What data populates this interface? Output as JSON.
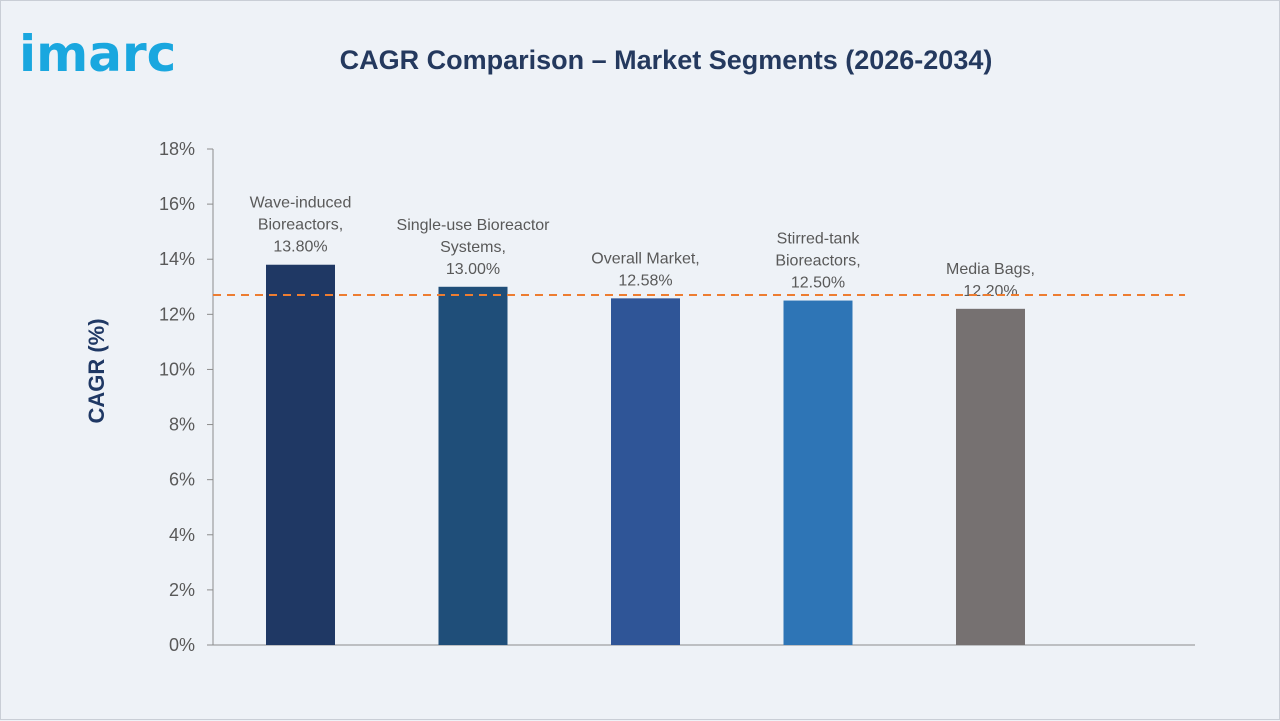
{
  "logo_text": "imarc",
  "chart_data": {
    "type": "bar",
    "title": "CAGR Comparison – Market Segments (2026-2034)",
    "ylabel": "CAGR (%)",
    "xlabel": "",
    "ylim": [
      0,
      18
    ],
    "y_ticks": [
      "0%",
      "2%",
      "4%",
      "6%",
      "8%",
      "10%",
      "12%",
      "14%",
      "16%",
      "18%"
    ],
    "y_tick_values": [
      0,
      2,
      4,
      6,
      8,
      10,
      12,
      14,
      16,
      18
    ],
    "categories": [
      "Wave-induced Bioreactors",
      "Single-use Bioreactor Systems",
      "Overall Market",
      "Stirred-tank Bioreactors",
      "Media Bags"
    ],
    "values": [
      13.8,
      13.0,
      12.58,
      12.5,
      12.2
    ],
    "data_labels": [
      [
        "Wave-induced",
        "Bioreactors,",
        "13.80%"
      ],
      [
        "Single-use Bioreactor",
        "Systems,",
        "13.00%"
      ],
      [
        "Overall Market,",
        "12.58%"
      ],
      [
        "Stirred-tank",
        "Bioreactors,",
        "12.50%"
      ],
      [
        "Media Bags,",
        "12.20%"
      ]
    ],
    "bar_colors": [
      "#1f3864",
      "#1f4e79",
      "#2f5597",
      "#2e75b6",
      "#767171"
    ],
    "reference_line": {
      "value": 12.7,
      "style": "dashed",
      "color": "#ed7d31"
    },
    "grid": false,
    "legend": "none"
  }
}
